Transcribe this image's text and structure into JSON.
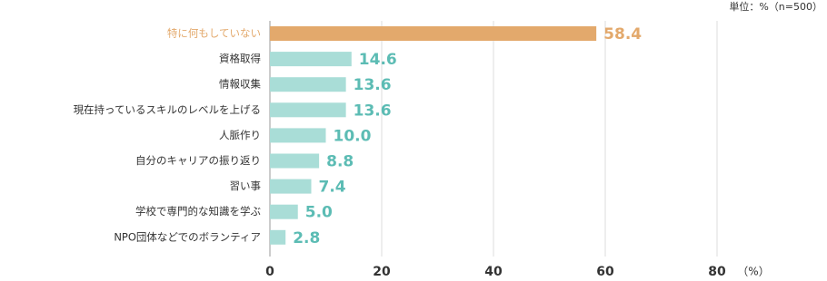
{
  "chart_data": {
    "type": "barh",
    "note": "単位：%（n=500）",
    "x_unit": "（%）",
    "categories": [
      "特に何もしていない",
      "資格取得",
      "情報収集",
      "現在持っているスキルのレベルを上げる",
      "人脈作り",
      "自分のキャリアの振り返り",
      "習い事",
      "学校で専門的な知識を学ぶ",
      "NPO団体などでのボランティア"
    ],
    "values": [
      58.4,
      14.6,
      13.6,
      13.6,
      10.0,
      8.8,
      7.4,
      5.0,
      2.8
    ],
    "value_labels": [
      "58.4",
      "14.6",
      "13.6",
      "13.6",
      "10.0",
      "8.8",
      "7.4",
      "5.0",
      "2.8"
    ],
    "bar_colors": [
      "#e3a96c",
      "#a9ddd7",
      "#a9ddd7",
      "#a9ddd7",
      "#a9ddd7",
      "#a9ddd7",
      "#a9ddd7",
      "#a9ddd7",
      "#a9ddd7"
    ],
    "category_label_colors": [
      "#e3a96c",
      "#333333",
      "#333333",
      "#333333",
      "#333333",
      "#333333",
      "#333333",
      "#333333",
      "#333333"
    ],
    "value_label_colors": [
      "#e3a96c",
      "#5cbcb4",
      "#5cbcb4",
      "#5cbcb4",
      "#5cbcb4",
      "#5cbcb4",
      "#5cbcb4",
      "#5cbcb4",
      "#5cbcb4"
    ],
    "xlim": [
      0,
      80
    ],
    "xticks": [
      0,
      20,
      40,
      60,
      80
    ],
    "grid": true
  }
}
